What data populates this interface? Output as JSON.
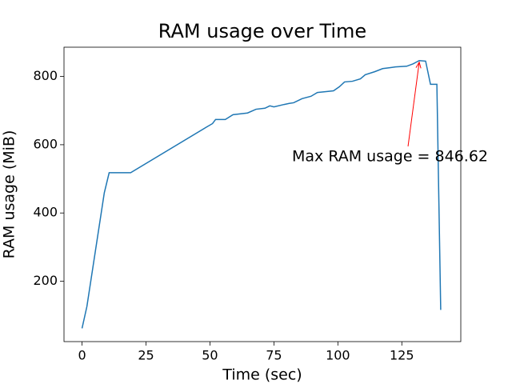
{
  "chart_data": {
    "type": "line",
    "title": "RAM usage over Time",
    "x_label": "Time (sec)",
    "y_label": "RAM usage (MiB)",
    "x": [
      0,
      1.9,
      8.7,
      10.6,
      19,
      48.5,
      51,
      52.2,
      56,
      59,
      64.7,
      68,
      71.5,
      73.4,
      75,
      79,
      81,
      82.7,
      86,
      89.5,
      92,
      95.8,
      98.3,
      100.6,
      102.6,
      105.7,
      108.8,
      110.7,
      114.4,
      117.5,
      120.6,
      122.5,
      126.9,
      129.4,
      131.8,
      134.3,
      136.2,
      138.7,
      140.2
    ],
    "series": [
      {
        "color": "#1f77b4",
        "values": [
          62,
          126,
          459,
          518,
          518,
          651,
          662,
          674,
          674,
          688,
          693,
          704,
          707,
          714,
          711,
          718,
          721,
          723,
          735,
          742,
          753,
          756,
          758,
          770,
          784,
          786,
          793,
          805,
          814,
          823,
          826,
          828,
          830,
          837,
          846.62,
          845,
          777,
          777,
          116
        ]
      }
    ],
    "annotation": {
      "text": "Max RAM usage = 846.62",
      "color": "#ff0000"
    },
    "xlim": [
      -7.05,
      148.05
    ],
    "xticks": [
      0,
      25,
      50,
      75,
      100,
      125
    ],
    "ylim": [
      23.1,
      885.8
    ],
    "yticks": [
      200,
      400,
      600,
      800
    ]
  }
}
